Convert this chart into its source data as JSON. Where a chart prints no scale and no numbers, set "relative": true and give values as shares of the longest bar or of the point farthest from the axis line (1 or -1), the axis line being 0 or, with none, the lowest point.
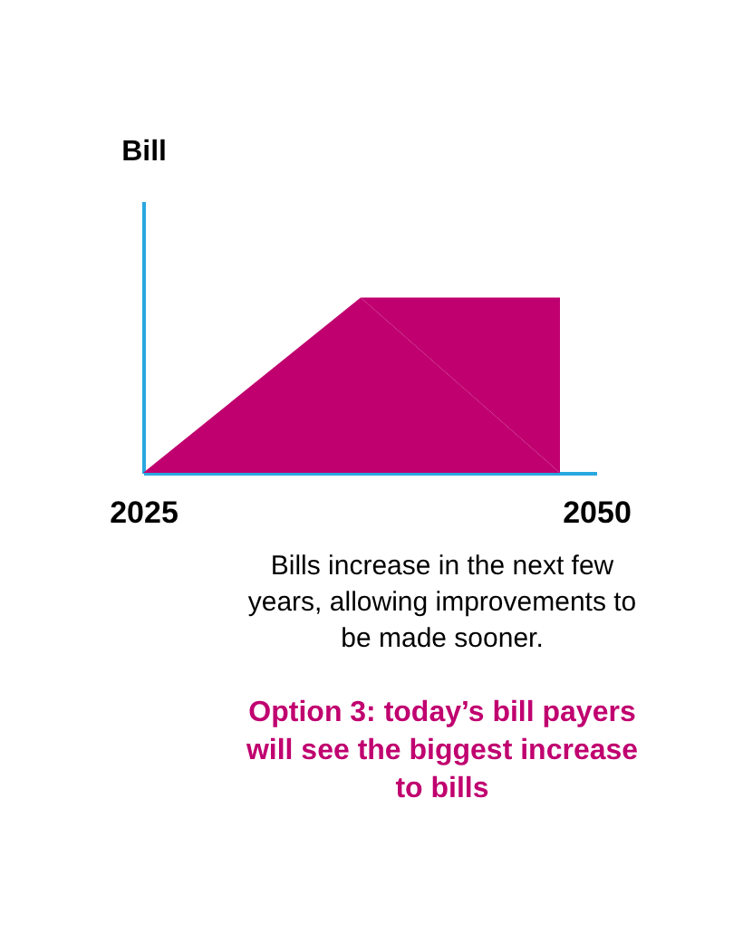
{
  "chart_data": {
    "type": "area",
    "relative": true,
    "ylabel": "Bill",
    "x": [
      2025,
      2037,
      2048
    ],
    "xlim": [
      2025,
      2050
    ],
    "xticks": [
      2025,
      2050
    ],
    "series": [
      {
        "color": "#c0006f",
        "values": [
          0,
          1,
          1
        ]
      }
    ],
    "grid": false,
    "annotations": [
      "Bills increase in the next few years, allowing improvements to be made sooner.",
      "Option 3: today’s bill payers will see the biggest increase to bills"
    ]
  }
}
